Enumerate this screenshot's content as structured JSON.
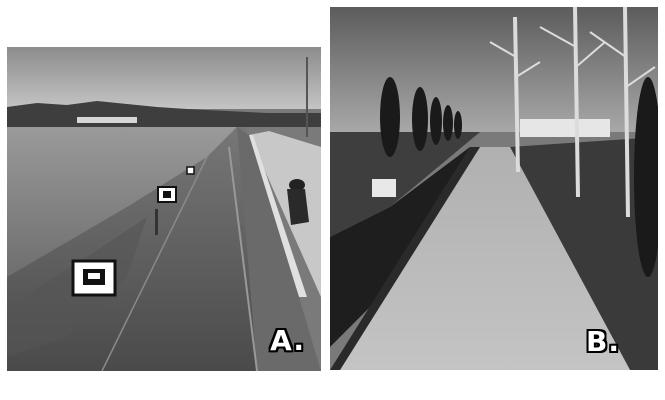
{
  "figure": {
    "panels": [
      {
        "id": "A",
        "label": "A.",
        "kind": "photograph",
        "tone": "grayscale"
      },
      {
        "id": "B",
        "label": "B.",
        "kind": "3d-render",
        "tone": "grayscale"
      }
    ]
  },
  "colors": {
    "background": "#ffffff",
    "label_fill": "#ffffff",
    "label_outline": "#000000"
  }
}
